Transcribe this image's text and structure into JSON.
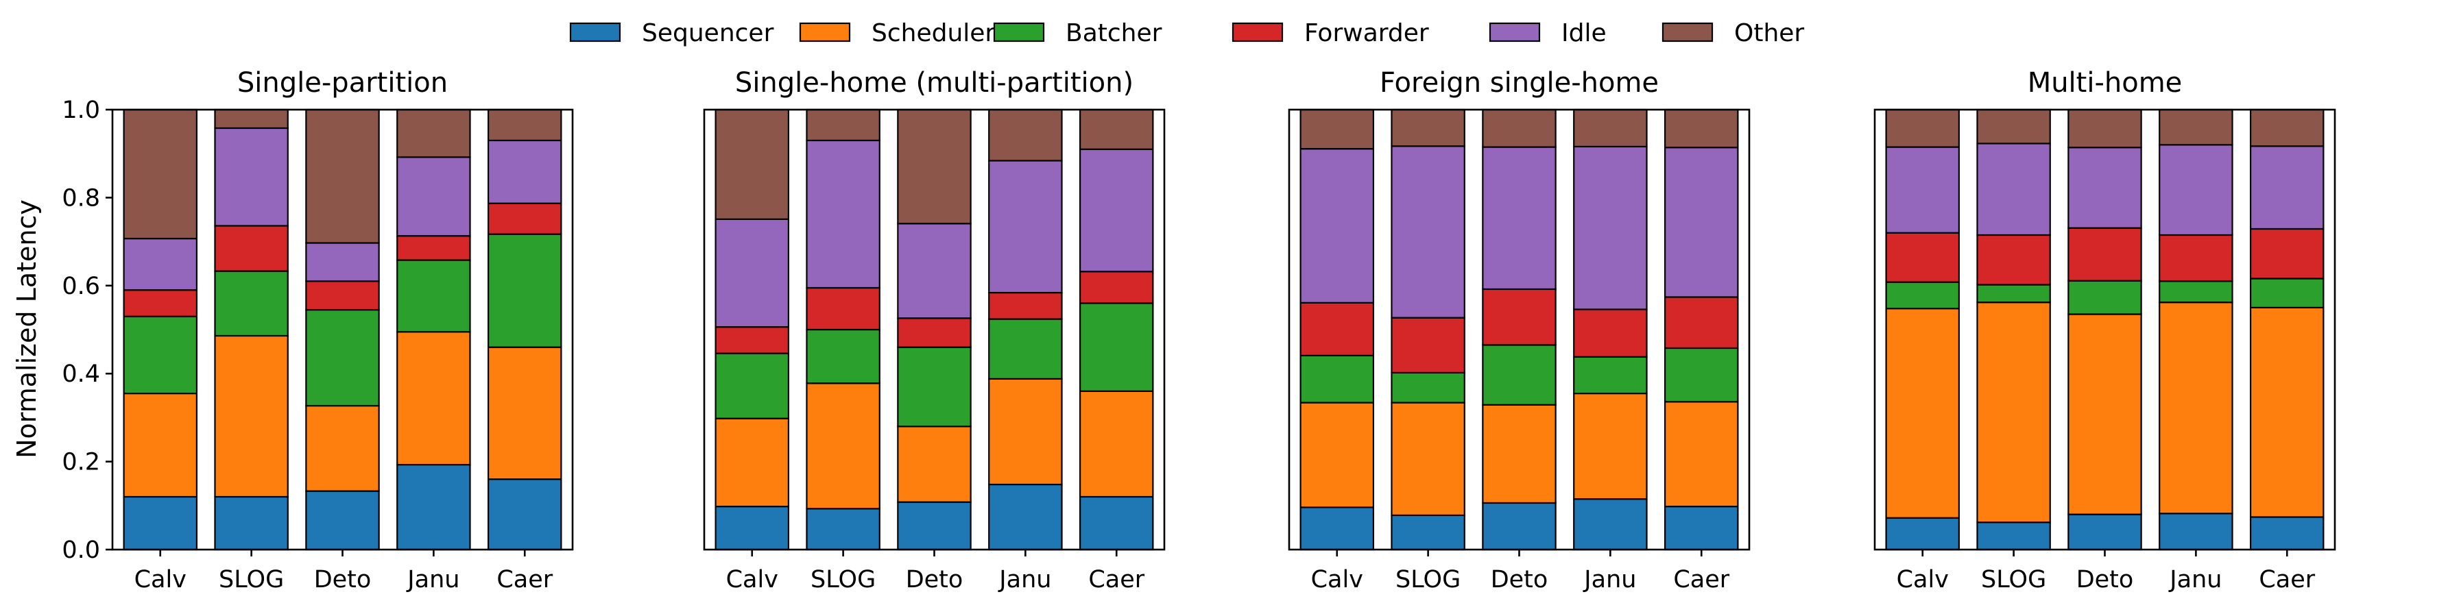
{
  "chart_data": {
    "type": "bar",
    "stacked": true,
    "ylabel": "Normalized Latency",
    "ylim": [
      0,
      1.0
    ],
    "yticks": [
      "0.0",
      "0.2",
      "0.4",
      "0.6",
      "0.8",
      "1.0"
    ],
    "categories": [
      "Calv",
      "SLOG",
      "Deto",
      "Janu",
      "Caer"
    ],
    "legend_position": "top-center",
    "grid": false,
    "components": [
      {
        "name": "Sequencer",
        "color": "#1f77b4"
      },
      {
        "name": "Scheduler",
        "color": "#ff7f0e"
      },
      {
        "name": "Batcher",
        "color": "#2ca02c"
      },
      {
        "name": "Forwarder",
        "color": "#d62728"
      },
      {
        "name": "Idle",
        "color": "#9467bd"
      },
      {
        "name": "Other",
        "color": "#8c564b"
      }
    ],
    "panels": [
      {
        "title": "Single-partition",
        "values": [
          [
            0.12,
            0.235,
            0.175,
            0.06,
            0.117,
            0.293
          ],
          [
            0.12,
            0.366,
            0.147,
            0.103,
            0.222,
            0.042
          ],
          [
            0.133,
            0.194,
            0.218,
            0.065,
            0.087,
            0.303
          ],
          [
            0.193,
            0.302,
            0.163,
            0.055,
            0.179,
            0.108
          ],
          [
            0.16,
            0.3,
            0.257,
            0.07,
            0.143,
            0.07
          ]
        ]
      },
      {
        "title": "Single-home (multi-partition)",
        "values": [
          [
            0.098,
            0.2,
            0.148,
            0.06,
            0.245,
            0.249
          ],
          [
            0.093,
            0.285,
            0.122,
            0.095,
            0.335,
            0.07
          ],
          [
            0.108,
            0.172,
            0.18,
            0.066,
            0.215,
            0.259
          ],
          [
            0.148,
            0.24,
            0.136,
            0.06,
            0.3,
            0.116
          ],
          [
            0.12,
            0.24,
            0.2,
            0.072,
            0.278,
            0.09
          ]
        ]
      },
      {
        "title": "Foreign single-home",
        "values": [
          [
            0.096,
            0.238,
            0.107,
            0.12,
            0.35,
            0.089
          ],
          [
            0.078,
            0.256,
            0.068,
            0.125,
            0.39,
            0.083
          ],
          [
            0.106,
            0.223,
            0.136,
            0.127,
            0.323,
            0.085
          ],
          [
            0.115,
            0.24,
            0.083,
            0.108,
            0.37,
            0.084
          ],
          [
            0.098,
            0.238,
            0.122,
            0.116,
            0.34,
            0.086
          ]
        ]
      },
      {
        "title": "Multi-home",
        "values": [
          [
            0.072,
            0.476,
            0.06,
            0.112,
            0.195,
            0.085
          ],
          [
            0.062,
            0.5,
            0.04,
            0.113,
            0.208,
            0.077
          ],
          [
            0.08,
            0.455,
            0.076,
            0.12,
            0.183,
            0.086
          ],
          [
            0.082,
            0.48,
            0.048,
            0.105,
            0.205,
            0.08
          ],
          [
            0.074,
            0.476,
            0.066,
            0.113,
            0.188,
            0.083
          ]
        ]
      }
    ]
  }
}
